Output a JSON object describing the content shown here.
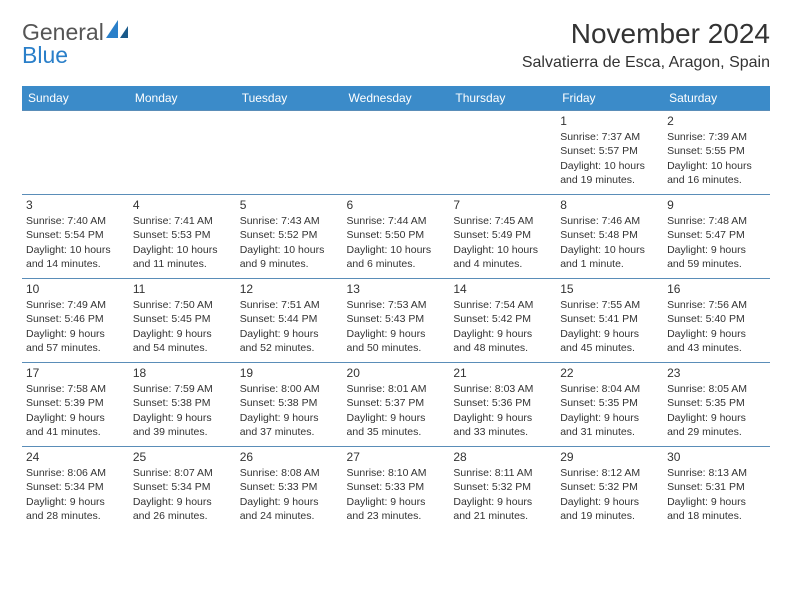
{
  "logo": {
    "text1": "General",
    "text2": "Blue"
  },
  "title": "November 2024",
  "location": "Salvatierra de Esca, Aragon, Spain",
  "colors": {
    "header_bg": "#3b8bc9",
    "header_text": "#ffffff",
    "cell_border": "#5a8db8",
    "text": "#333333",
    "logo_blue": "#2a7fc9",
    "background": "#ffffff"
  },
  "typography": {
    "title_fontsize": 28,
    "location_fontsize": 16,
    "dayheader_fontsize": 12,
    "cell_fontsize": 10.5
  },
  "day_headers": [
    "Sunday",
    "Monday",
    "Tuesday",
    "Wednesday",
    "Thursday",
    "Friday",
    "Saturday"
  ],
  "weeks": [
    [
      null,
      null,
      null,
      null,
      null,
      {
        "n": "1",
        "sr": "Sunrise: 7:37 AM",
        "ss": "Sunset: 5:57 PM",
        "dl": "Daylight: 10 hours and 19 minutes."
      },
      {
        "n": "2",
        "sr": "Sunrise: 7:39 AM",
        "ss": "Sunset: 5:55 PM",
        "dl": "Daylight: 10 hours and 16 minutes."
      }
    ],
    [
      {
        "n": "3",
        "sr": "Sunrise: 7:40 AM",
        "ss": "Sunset: 5:54 PM",
        "dl": "Daylight: 10 hours and 14 minutes."
      },
      {
        "n": "4",
        "sr": "Sunrise: 7:41 AM",
        "ss": "Sunset: 5:53 PM",
        "dl": "Daylight: 10 hours and 11 minutes."
      },
      {
        "n": "5",
        "sr": "Sunrise: 7:43 AM",
        "ss": "Sunset: 5:52 PM",
        "dl": "Daylight: 10 hours and 9 minutes."
      },
      {
        "n": "6",
        "sr": "Sunrise: 7:44 AM",
        "ss": "Sunset: 5:50 PM",
        "dl": "Daylight: 10 hours and 6 minutes."
      },
      {
        "n": "7",
        "sr": "Sunrise: 7:45 AM",
        "ss": "Sunset: 5:49 PM",
        "dl": "Daylight: 10 hours and 4 minutes."
      },
      {
        "n": "8",
        "sr": "Sunrise: 7:46 AM",
        "ss": "Sunset: 5:48 PM",
        "dl": "Daylight: 10 hours and 1 minute."
      },
      {
        "n": "9",
        "sr": "Sunrise: 7:48 AM",
        "ss": "Sunset: 5:47 PM",
        "dl": "Daylight: 9 hours and 59 minutes."
      }
    ],
    [
      {
        "n": "10",
        "sr": "Sunrise: 7:49 AM",
        "ss": "Sunset: 5:46 PM",
        "dl": "Daylight: 9 hours and 57 minutes."
      },
      {
        "n": "11",
        "sr": "Sunrise: 7:50 AM",
        "ss": "Sunset: 5:45 PM",
        "dl": "Daylight: 9 hours and 54 minutes."
      },
      {
        "n": "12",
        "sr": "Sunrise: 7:51 AM",
        "ss": "Sunset: 5:44 PM",
        "dl": "Daylight: 9 hours and 52 minutes."
      },
      {
        "n": "13",
        "sr": "Sunrise: 7:53 AM",
        "ss": "Sunset: 5:43 PM",
        "dl": "Daylight: 9 hours and 50 minutes."
      },
      {
        "n": "14",
        "sr": "Sunrise: 7:54 AM",
        "ss": "Sunset: 5:42 PM",
        "dl": "Daylight: 9 hours and 48 minutes."
      },
      {
        "n": "15",
        "sr": "Sunrise: 7:55 AM",
        "ss": "Sunset: 5:41 PM",
        "dl": "Daylight: 9 hours and 45 minutes."
      },
      {
        "n": "16",
        "sr": "Sunrise: 7:56 AM",
        "ss": "Sunset: 5:40 PM",
        "dl": "Daylight: 9 hours and 43 minutes."
      }
    ],
    [
      {
        "n": "17",
        "sr": "Sunrise: 7:58 AM",
        "ss": "Sunset: 5:39 PM",
        "dl": "Daylight: 9 hours and 41 minutes."
      },
      {
        "n": "18",
        "sr": "Sunrise: 7:59 AM",
        "ss": "Sunset: 5:38 PM",
        "dl": "Daylight: 9 hours and 39 minutes."
      },
      {
        "n": "19",
        "sr": "Sunrise: 8:00 AM",
        "ss": "Sunset: 5:38 PM",
        "dl": "Daylight: 9 hours and 37 minutes."
      },
      {
        "n": "20",
        "sr": "Sunrise: 8:01 AM",
        "ss": "Sunset: 5:37 PM",
        "dl": "Daylight: 9 hours and 35 minutes."
      },
      {
        "n": "21",
        "sr": "Sunrise: 8:03 AM",
        "ss": "Sunset: 5:36 PM",
        "dl": "Daylight: 9 hours and 33 minutes."
      },
      {
        "n": "22",
        "sr": "Sunrise: 8:04 AM",
        "ss": "Sunset: 5:35 PM",
        "dl": "Daylight: 9 hours and 31 minutes."
      },
      {
        "n": "23",
        "sr": "Sunrise: 8:05 AM",
        "ss": "Sunset: 5:35 PM",
        "dl": "Daylight: 9 hours and 29 minutes."
      }
    ],
    [
      {
        "n": "24",
        "sr": "Sunrise: 8:06 AM",
        "ss": "Sunset: 5:34 PM",
        "dl": "Daylight: 9 hours and 28 minutes."
      },
      {
        "n": "25",
        "sr": "Sunrise: 8:07 AM",
        "ss": "Sunset: 5:34 PM",
        "dl": "Daylight: 9 hours and 26 minutes."
      },
      {
        "n": "26",
        "sr": "Sunrise: 8:08 AM",
        "ss": "Sunset: 5:33 PM",
        "dl": "Daylight: 9 hours and 24 minutes."
      },
      {
        "n": "27",
        "sr": "Sunrise: 8:10 AM",
        "ss": "Sunset: 5:33 PM",
        "dl": "Daylight: 9 hours and 23 minutes."
      },
      {
        "n": "28",
        "sr": "Sunrise: 8:11 AM",
        "ss": "Sunset: 5:32 PM",
        "dl": "Daylight: 9 hours and 21 minutes."
      },
      {
        "n": "29",
        "sr": "Sunrise: 8:12 AM",
        "ss": "Sunset: 5:32 PM",
        "dl": "Daylight: 9 hours and 19 minutes."
      },
      {
        "n": "30",
        "sr": "Sunrise: 8:13 AM",
        "ss": "Sunset: 5:31 PM",
        "dl": "Daylight: 9 hours and 18 minutes."
      }
    ]
  ]
}
